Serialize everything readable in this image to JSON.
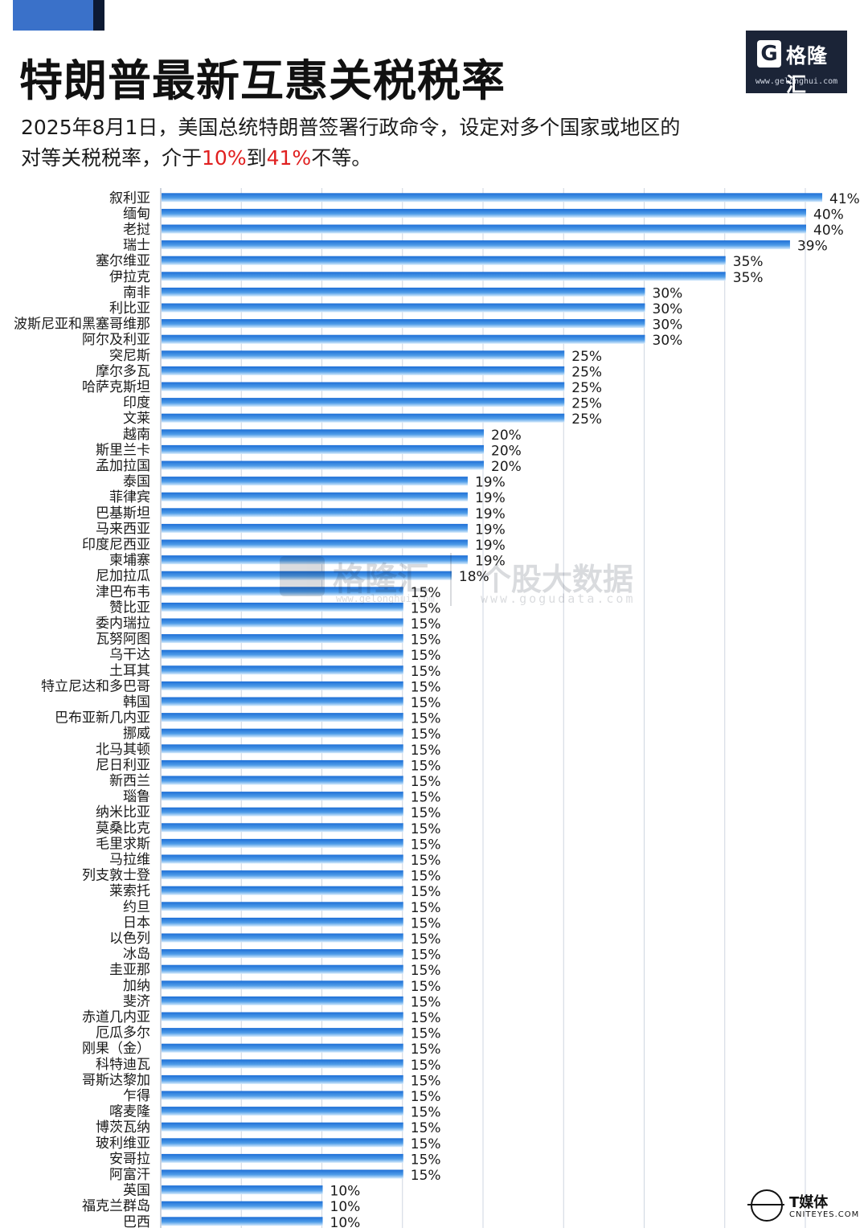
{
  "header": {
    "title": "特朗普最新互惠关税税率",
    "subtitle_line1": "2025年8月1日，美国总统特朗普签署行政命令，设定对多个国家或地区的",
    "subtitle_line2_a": "对等关税税率，介于",
    "subtitle_line2_b": "10%",
    "subtitle_line2_c": "到",
    "subtitle_line2_d": "41%",
    "subtitle_line2_e": "不等。"
  },
  "logo": {
    "mark": "G",
    "name": "格隆汇",
    "url": "www.gelonghui.com"
  },
  "watermark": {
    "name": "格隆汇",
    "url": "www.gelonghui.com",
    "name2": "个股大数据",
    "url2": "www.gogudata.com"
  },
  "footer": {
    "name": "T媒体",
    "url": "CNITEYES.COM"
  },
  "colors": {
    "accent": "#3a71c9",
    "bar_dark": "#1e6fd6",
    "bar_light": "#d8ecfc",
    "highlight": "#e02020",
    "grid": "#cfd6e0"
  },
  "chart_data": {
    "type": "bar",
    "orientation": "horizontal",
    "xlim": [
      0,
      41
    ],
    "grid": true,
    "categories": [
      "叙利亚",
      "缅甸",
      "老挝",
      "瑞士",
      "塞尔维亚",
      "伊拉克",
      "南非",
      "利比亚",
      "波斯尼亚和黑塞哥维那",
      "阿尔及利亚",
      "突尼斯",
      "摩尔多瓦",
      "哈萨克斯坦",
      "印度",
      "文莱",
      "越南",
      "斯里兰卡",
      "孟加拉国",
      "泰国",
      "菲律宾",
      "巴基斯坦",
      "马来西亚",
      "印度尼西亚",
      "柬埔寨",
      "尼加拉瓜",
      "津巴布韦",
      "赞比亚",
      "委内瑞拉",
      "瓦努阿图",
      "乌干达",
      "土耳其",
      "特立尼达和多巴哥",
      "韩国",
      "巴布亚新几内亚",
      "挪威",
      "北马其顿",
      "尼日利亚",
      "新西兰",
      "瑙鲁",
      "纳米比亚",
      "莫桑比克",
      "毛里求斯",
      "马拉维",
      "列支敦士登",
      "莱索托",
      "约旦",
      "日本",
      "以色列",
      "冰岛",
      "圭亚那",
      "加纳",
      "斐济",
      "赤道几内亚",
      "厄瓜多尔",
      "刚果（金）",
      "科特迪瓦",
      "哥斯达黎加",
      "乍得",
      "喀麦隆",
      "博茨瓦纳",
      "玻利维亚",
      "安哥拉",
      "阿富汗",
      "英国",
      "福克兰群岛",
      "巴西"
    ],
    "values": [
      41,
      40,
      40,
      39,
      35,
      35,
      30,
      30,
      30,
      30,
      25,
      25,
      25,
      25,
      25,
      20,
      20,
      20,
      19,
      19,
      19,
      19,
      19,
      19,
      18,
      15,
      15,
      15,
      15,
      15,
      15,
      15,
      15,
      15,
      15,
      15,
      15,
      15,
      15,
      15,
      15,
      15,
      15,
      15,
      15,
      15,
      15,
      15,
      15,
      15,
      15,
      15,
      15,
      15,
      15,
      15,
      15,
      15,
      15,
      15,
      15,
      15,
      15,
      10,
      10,
      10
    ],
    "labels": [
      "41%",
      "40%",
      "40%",
      "39%",
      "35%",
      "35%",
      "30%",
      "30%",
      "30%",
      "30%",
      "25%",
      "25%",
      "25%",
      "25%",
      "25%",
      "20%",
      "20%",
      "20%",
      "19%",
      "19%",
      "19%",
      "19%",
      "19%",
      "19%",
      "18%",
      "15%",
      "15%",
      "15%",
      "15%",
      "15%",
      "15%",
      "15%",
      "15%",
      "15%",
      "15%",
      "15%",
      "15%",
      "15%",
      "15%",
      "15%",
      "15%",
      "15%",
      "15%",
      "15%",
      "15%",
      "15%",
      "15%",
      "15%",
      "15%",
      "15%",
      "15%",
      "15%",
      "15%",
      "15%",
      "15%",
      "15%",
      "15%",
      "15%",
      "15%",
      "15%",
      "15%",
      "15%",
      "15%",
      "10%",
      "10%",
      "10%"
    ]
  }
}
